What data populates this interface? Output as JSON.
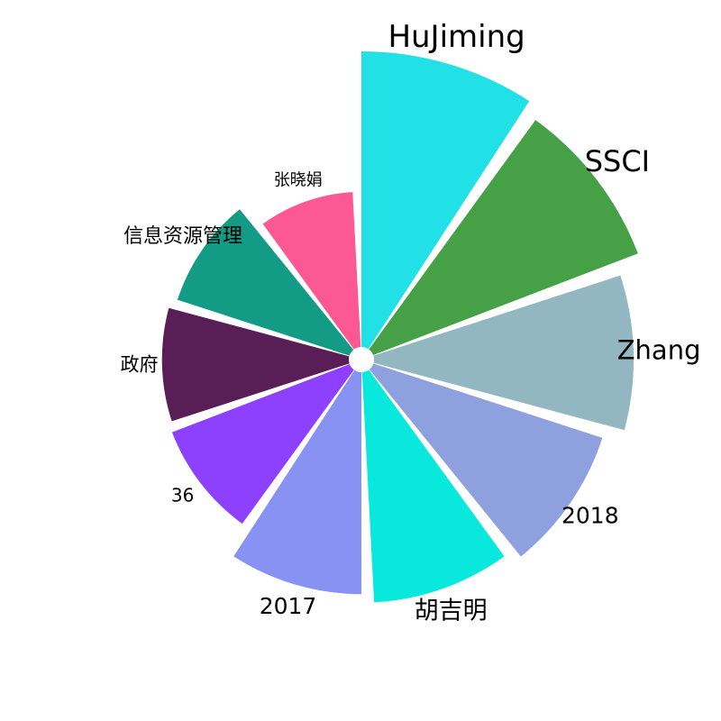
{
  "chart_data": {
    "type": "bar",
    "polar": true,
    "title": "",
    "categories": [
      "HuJiming",
      "SSCI",
      "Zhang",
      "2018",
      "胡吉明",
      "2017",
      "36",
      "政府",
      "信息资源管理",
      "张晓娟"
    ],
    "values": [
      345,
      331,
      303,
      281,
      269,
      259,
      222,
      218,
      211,
      181
    ],
    "colors": [
      "#21e0e6",
      "#46a046",
      "#93b7c0",
      "#8fa0de",
      "#08e8dc",
      "#8892f2",
      "#8d40fe",
      "#591e56",
      "#139b86",
      "#fc5994"
    ],
    "radial_range": [
      0,
      345
    ],
    "grid": false,
    "legend": "none"
  }
}
